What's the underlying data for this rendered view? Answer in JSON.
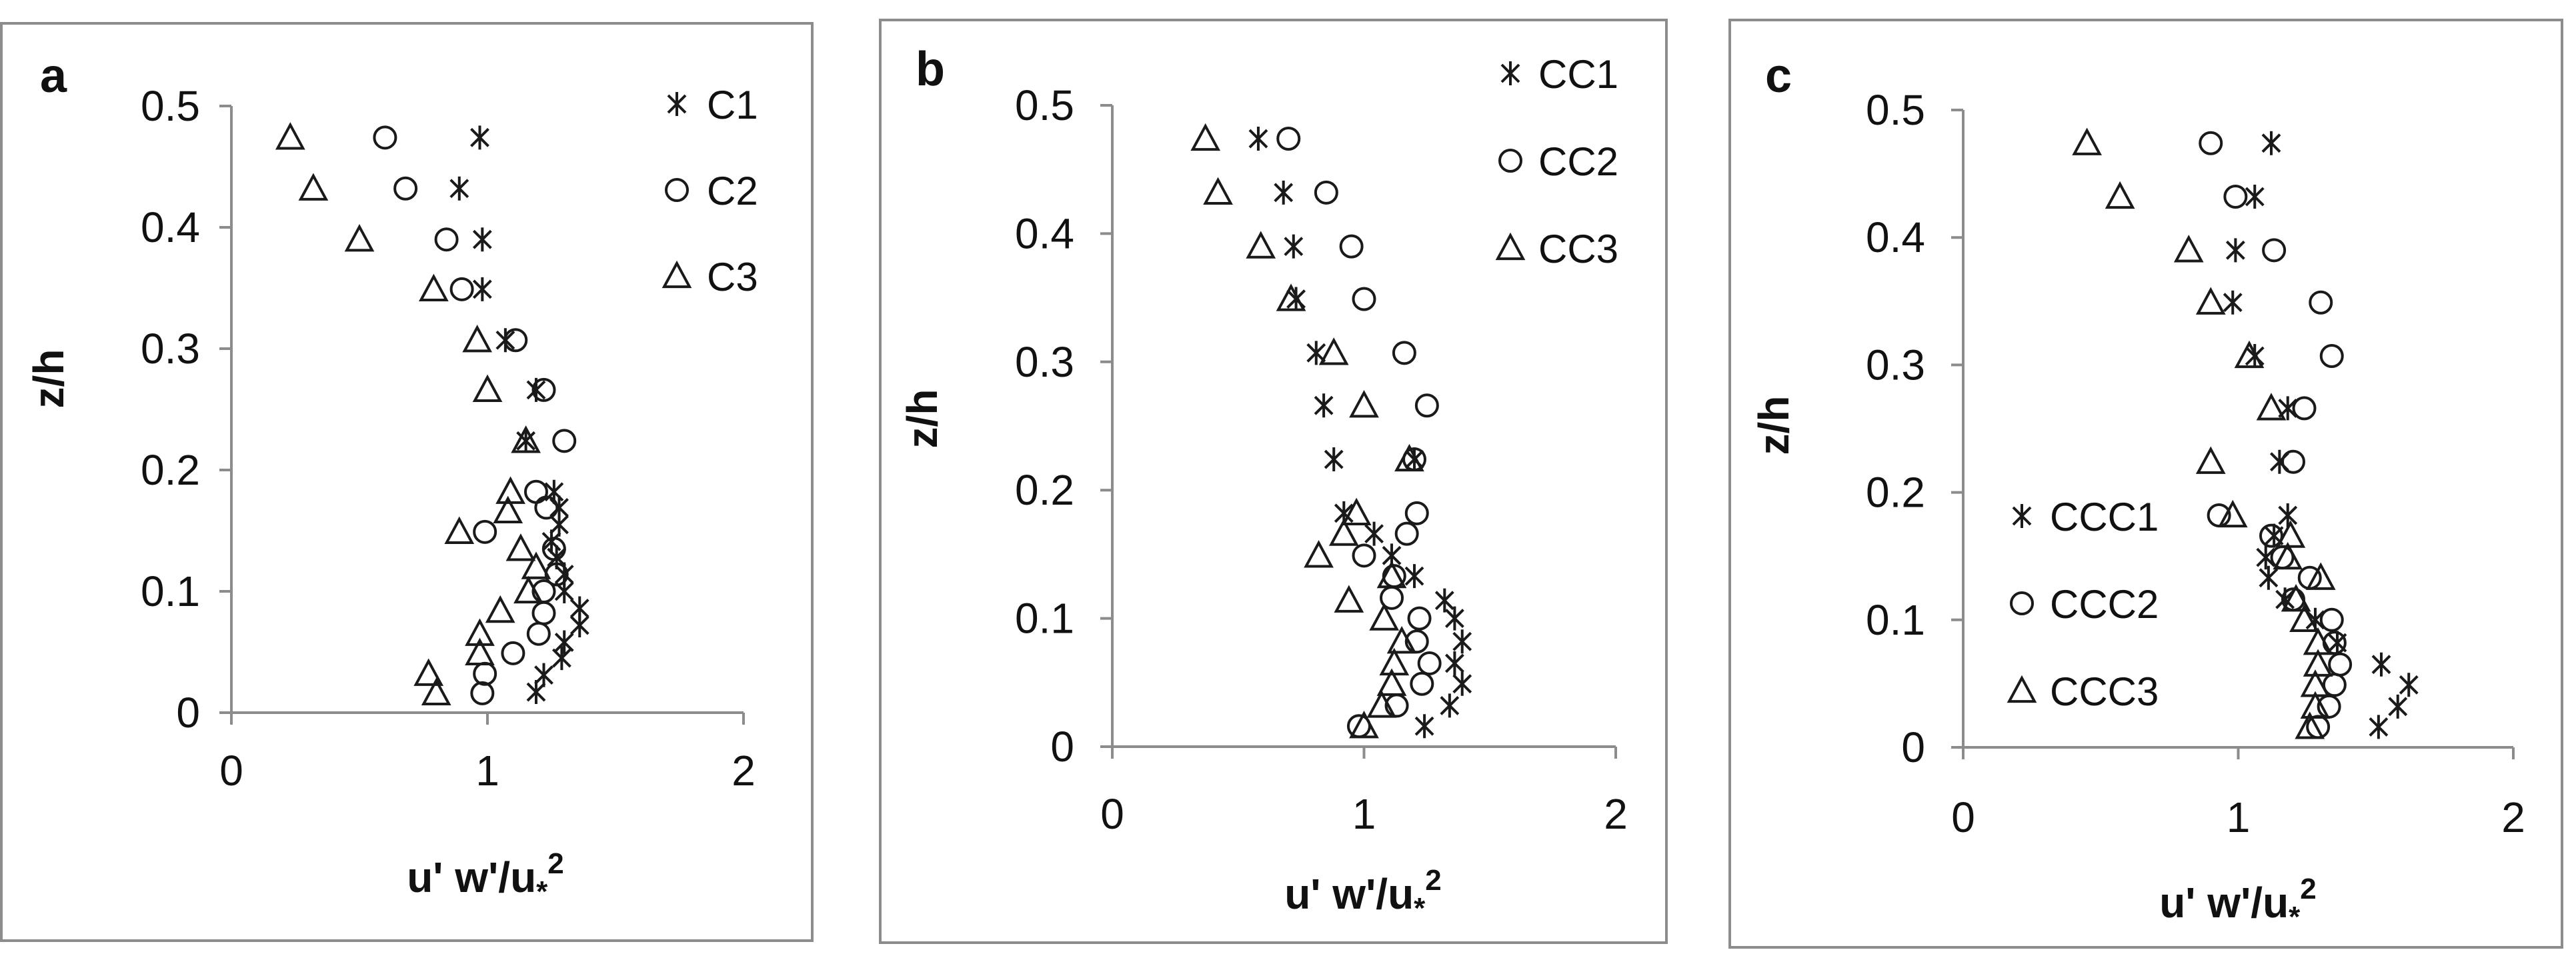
{
  "chart_data": [
    {
      "type": "scatter",
      "panel_label": "a",
      "xlabel": "u' w'/u",
      "xlabel_sub": "*",
      "xlabel_sup": "2",
      "ylabel": "z/h",
      "xlim": [
        0,
        2
      ],
      "ylim": [
        0,
        0.5
      ],
      "xticks": [
        "0",
        "1",
        "2"
      ],
      "yticks": [
        "0",
        "0.1",
        "0.2",
        "0.3",
        "0.4",
        "0.5"
      ],
      "legend_position": "top-right",
      "series": [
        {
          "name": "C1",
          "marker": "asterisk",
          "points": [
            [
              0.97,
              0.474
            ],
            [
              0.89,
              0.432
            ],
            [
              0.98,
              0.39
            ],
            [
              0.98,
              0.349
            ],
            [
              1.07,
              0.307
            ],
            [
              1.19,
              0.266
            ],
            [
              1.15,
              0.224
            ],
            [
              1.26,
              0.182
            ],
            [
              1.28,
              0.169
            ],
            [
              1.28,
              0.155
            ],
            [
              1.25,
              0.141
            ],
            [
              1.27,
              0.128
            ],
            [
              1.3,
              0.114
            ],
            [
              1.3,
              0.1
            ],
            [
              1.36,
              0.086
            ],
            [
              1.36,
              0.072
            ],
            [
              1.3,
              0.058
            ],
            [
              1.29,
              0.045
            ],
            [
              1.22,
              0.031
            ],
            [
              1.19,
              0.017
            ]
          ]
        },
        {
          "name": "C2",
          "marker": "circle",
          "points": [
            [
              0.6,
              0.474
            ],
            [
              0.68,
              0.432
            ],
            [
              0.84,
              0.39
            ],
            [
              0.9,
              0.349
            ],
            [
              1.11,
              0.307
            ],
            [
              1.22,
              0.266
            ],
            [
              1.3,
              0.224
            ],
            [
              1.19,
              0.182
            ],
            [
              1.23,
              0.169
            ],
            [
              0.99,
              0.149
            ],
            [
              1.26,
              0.135
            ],
            [
              1.27,
              0.114
            ],
            [
              1.22,
              0.1
            ],
            [
              1.22,
              0.082
            ],
            [
              1.2,
              0.065
            ],
            [
              1.1,
              0.049
            ],
            [
              0.99,
              0.032
            ],
            [
              0.98,
              0.016
            ]
          ]
        },
        {
          "name": "C3",
          "marker": "triangle",
          "points": [
            [
              0.23,
              0.474
            ],
            [
              0.32,
              0.432
            ],
            [
              0.5,
              0.39
            ],
            [
              0.79,
              0.349
            ],
            [
              0.96,
              0.307
            ],
            [
              1.0,
              0.266
            ],
            [
              1.15,
              0.224
            ],
            [
              1.09,
              0.182
            ],
            [
              1.08,
              0.166
            ],
            [
              0.89,
              0.149
            ],
            [
              1.13,
              0.135
            ],
            [
              1.19,
              0.12
            ],
            [
              1.16,
              0.1
            ],
            [
              1.05,
              0.084
            ],
            [
              0.97,
              0.065
            ],
            [
              0.97,
              0.049
            ],
            [
              0.77,
              0.032
            ],
            [
              0.8,
              0.016
            ]
          ]
        }
      ]
    },
    {
      "type": "scatter",
      "panel_label": "b",
      "xlabel": "u' w'/u",
      "xlabel_sub": "*",
      "xlabel_sup": "2",
      "ylabel": "z/h",
      "xlim": [
        0,
        2
      ],
      "ylim": [
        0,
        0.5
      ],
      "xticks": [
        "0",
        "1",
        "2"
      ],
      "yticks": [
        "0",
        "0.1",
        "0.2",
        "0.3",
        "0.4",
        "0.5"
      ],
      "legend_position": "top-right",
      "series": [
        {
          "name": "CC1",
          "marker": "asterisk",
          "points": [
            [
              0.58,
              0.474
            ],
            [
              0.68,
              0.432
            ],
            [
              0.72,
              0.39
            ],
            [
              0.73,
              0.349
            ],
            [
              0.81,
              0.307
            ],
            [
              0.84,
              0.266
            ],
            [
              0.88,
              0.224
            ],
            [
              0.92,
              0.182
            ],
            [
              1.2,
              0.224
            ],
            [
              1.04,
              0.166
            ],
            [
              1.2,
              0.133
            ],
            [
              1.11,
              0.149
            ],
            [
              1.32,
              0.114
            ],
            [
              1.36,
              0.1
            ],
            [
              1.39,
              0.082
            ],
            [
              1.36,
              0.065
            ],
            [
              1.39,
              0.049
            ],
            [
              1.34,
              0.032
            ],
            [
              1.24,
              0.016
            ]
          ]
        },
        {
          "name": "CC2",
          "marker": "circle",
          "points": [
            [
              0.7,
              0.474
            ],
            [
              0.85,
              0.432
            ],
            [
              0.95,
              0.39
            ],
            [
              1.0,
              0.349
            ],
            [
              1.16,
              0.307
            ],
            [
              1.25,
              0.266
            ],
            [
              1.2,
              0.224
            ],
            [
              1.21,
              0.182
            ],
            [
              1.17,
              0.166
            ],
            [
              1.0,
              0.149
            ],
            [
              1.12,
              0.133
            ],
            [
              1.11,
              0.116
            ],
            [
              1.22,
              0.1
            ],
            [
              1.21,
              0.082
            ],
            [
              1.26,
              0.065
            ],
            [
              1.23,
              0.049
            ],
            [
              1.13,
              0.032
            ],
            [
              0.98,
              0.016
            ]
          ]
        },
        {
          "name": "CC3",
          "marker": "triangle",
          "points": [
            [
              0.37,
              0.474
            ],
            [
              0.42,
              0.432
            ],
            [
              0.59,
              0.39
            ],
            [
              0.71,
              0.349
            ],
            [
              0.88,
              0.307
            ],
            [
              1.0,
              0.266
            ],
            [
              1.18,
              0.224
            ],
            [
              0.97,
              0.182
            ],
            [
              0.92,
              0.166
            ],
            [
              0.82,
              0.149
            ],
            [
              1.11,
              0.133
            ],
            [
              0.94,
              0.114
            ],
            [
              1.08,
              0.1
            ],
            [
              1.15,
              0.082
            ],
            [
              1.12,
              0.065
            ],
            [
              1.11,
              0.049
            ],
            [
              1.07,
              0.032
            ],
            [
              1.0,
              0.016
            ]
          ]
        }
      ]
    },
    {
      "type": "scatter",
      "panel_label": "c",
      "xlabel": "u' w'/u",
      "xlabel_sub": "*",
      "xlabel_sup": "2",
      "ylabel": "z/h",
      "xlim": [
        0,
        2
      ],
      "ylim": [
        0,
        0.5
      ],
      "xticks": [
        "0",
        "1",
        "2"
      ],
      "yticks": [
        "0",
        "0.1",
        "0.2",
        "0.3",
        "0.4",
        "0.5"
      ],
      "legend_position": "bottom-left",
      "series": [
        {
          "name": "CCC1",
          "marker": "asterisk",
          "points": [
            [
              1.12,
              0.474
            ],
            [
              1.06,
              0.432
            ],
            [
              0.99,
              0.39
            ],
            [
              0.98,
              0.349
            ],
            [
              1.06,
              0.307
            ],
            [
              1.18,
              0.266
            ],
            [
              1.15,
              0.224
            ],
            [
              1.18,
              0.182
            ],
            [
              1.13,
              0.166
            ],
            [
              1.1,
              0.149
            ],
            [
              1.11,
              0.133
            ],
            [
              1.17,
              0.116
            ],
            [
              1.28,
              0.1
            ],
            [
              1.36,
              0.082
            ],
            [
              1.52,
              0.065
            ],
            [
              1.62,
              0.049
            ],
            [
              1.58,
              0.032
            ],
            [
              1.51,
              0.016
            ]
          ]
        },
        {
          "name": "CCC2",
          "marker": "circle",
          "points": [
            [
              0.9,
              0.474
            ],
            [
              0.99,
              0.432
            ],
            [
              1.13,
              0.39
            ],
            [
              1.3,
              0.349
            ],
            [
              1.34,
              0.307
            ],
            [
              1.24,
              0.266
            ],
            [
              1.2,
              0.224
            ],
            [
              0.93,
              0.182
            ],
            [
              1.12,
              0.166
            ],
            [
              1.16,
              0.149
            ],
            [
              1.26,
              0.133
            ],
            [
              1.2,
              0.116
            ],
            [
              1.34,
              0.1
            ],
            [
              1.35,
              0.082
            ],
            [
              1.37,
              0.065
            ],
            [
              1.35,
              0.049
            ],
            [
              1.33,
              0.032
            ],
            [
              1.29,
              0.016
            ]
          ]
        },
        {
          "name": "CCC3",
          "marker": "triangle",
          "points": [
            [
              0.45,
              0.474
            ],
            [
              0.57,
              0.432
            ],
            [
              0.82,
              0.39
            ],
            [
              0.9,
              0.349
            ],
            [
              1.04,
              0.307
            ],
            [
              1.12,
              0.266
            ],
            [
              0.9,
              0.224
            ],
            [
              0.98,
              0.182
            ],
            [
              1.19,
              0.166
            ],
            [
              1.18,
              0.149
            ],
            [
              1.3,
              0.133
            ],
            [
              1.21,
              0.116
            ],
            [
              1.24,
              0.1
            ],
            [
              1.29,
              0.082
            ],
            [
              1.29,
              0.065
            ],
            [
              1.28,
              0.049
            ],
            [
              1.28,
              0.032
            ],
            [
              1.26,
              0.016
            ]
          ]
        }
      ]
    }
  ]
}
